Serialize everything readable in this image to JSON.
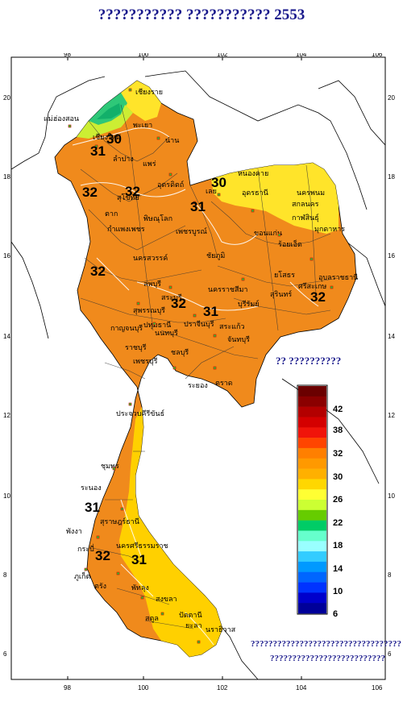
{
  "title": "??????????? ??????????? 2553",
  "x_ticks": [
    "98",
    "100",
    "102",
    "104",
    "106"
  ],
  "y_ticks": [
    "20",
    "18",
    "16",
    "14",
    "12",
    "10",
    "8",
    "6"
  ],
  "legend": {
    "title": "?? ??????????",
    "labels": [
      "42",
      "38",
      "32",
      "30",
      "26",
      "22",
      "18",
      "14",
      "10",
      "6"
    ],
    "colors": [
      "#6b0000",
      "#8b0000",
      "#b30000",
      "#d40000",
      "#f0140a",
      "#ff4500",
      "#ff7f00",
      "#ff9900",
      "#ffb000",
      "#ffd700",
      "#ffff33",
      "#ccff33",
      "#66cc00",
      "#00cc66",
      "#66ffcc",
      "#99ffff",
      "#33ccff",
      "#0099ff",
      "#0066ff",
      "#0033ff",
      "#0000cc",
      "#000099"
    ]
  },
  "provinces": [
    "เชียงราย",
    "แม่ฮ่องสอน",
    "เชียงใหม่",
    "พะเยา",
    "น่าน",
    "ลำปาง",
    "แพร่",
    "อุตรดิตถ์",
    "ตาก",
    "สุโขทัย",
    "พิษณุโลก",
    "เลย",
    "หนองคาย",
    "อุดรธานี",
    "สกลนคร",
    "นครพนม",
    "มุกดาหาร",
    "ขอนแก่น",
    "กาฬสินธุ์",
    "กำแพงเพชร",
    "เพชรบูรณ์",
    "นครสวรรค์",
    "ชัยภูมิ",
    "ร้อยเอ็ด",
    "อุบลราชธานี",
    "ยโสธร",
    "ศรีสะเกษ",
    "สุรินทร์",
    "บุรีรัมย์",
    "นครราชสีมา",
    "ลพบุรี",
    "สระบุรี",
    "สุพรรณบุรี",
    "กาญจนบุรี",
    "ปทุมธานี",
    "นนทบุรี",
    "ปราจีนบุรี",
    "สระแก้ว",
    "ชลบุรี",
    "ระยอง",
    "จันทบุรี",
    "ตราด",
    "ราชบุรี",
    "เพชรบุรี",
    "ประจวบคีรีขันธ์",
    "ชุมพร",
    "ระนอง",
    "สุราษฎร์ธานี",
    "พังงา",
    "กระบี่",
    "ภูเก็ต",
    "นครศรีธรรมราช",
    "ตรัง",
    "พัทลุง",
    "สงขลา",
    "สตูล",
    "ปัตตานี",
    "ยะลา",
    "นราธิวาส"
  ],
  "contour_labels": [
    "30",
    "31",
    "32",
    "32",
    "32",
    "31",
    "30",
    "31",
    "32",
    "32",
    "31",
    "32",
    "31"
  ],
  "notes": [
    "??????????????????????????????????",
    "??????????????????????????"
  ]
}
